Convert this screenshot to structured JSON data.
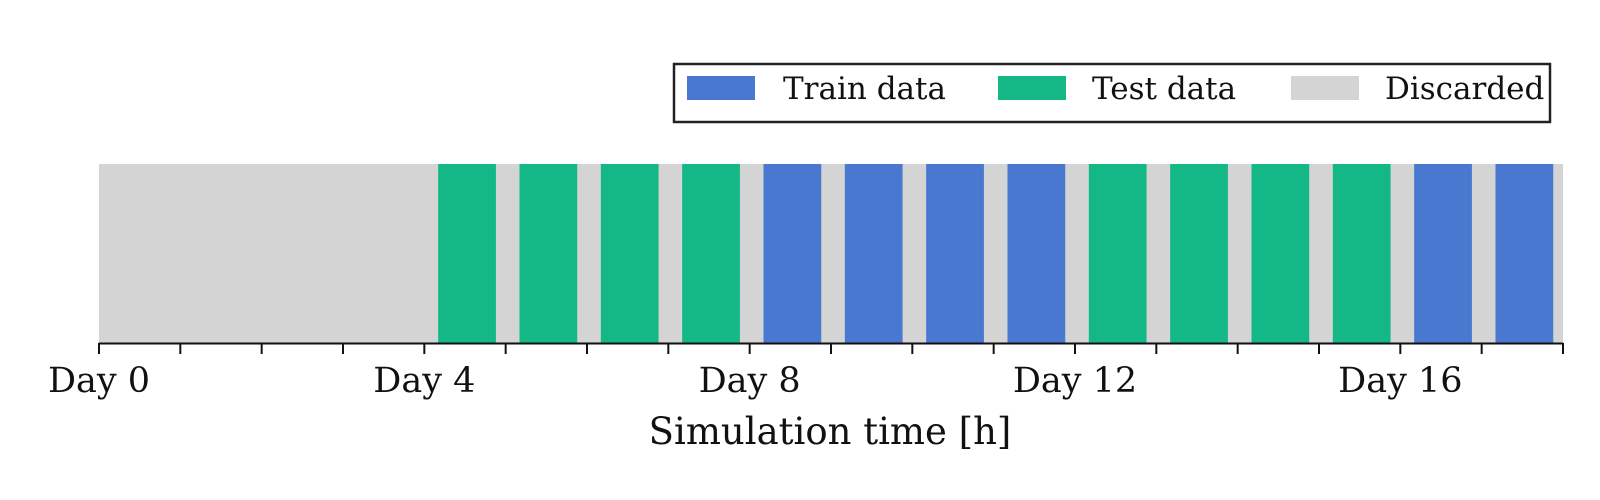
{
  "chart_data": {
    "type": "bar",
    "orientation": "horizontal-timeline",
    "xlabel": "Simulation time [h]",
    "xlim": [
      0,
      18
    ],
    "x_ticks": [
      0,
      1,
      2,
      3,
      4,
      5,
      6,
      7,
      8,
      9,
      10,
      11,
      12,
      13,
      14,
      15,
      16,
      17,
      18
    ],
    "x_tick_labels": [
      {
        "value": 0,
        "label": "Day 0"
      },
      {
        "value": 4,
        "label": "Day 4"
      },
      {
        "value": 8,
        "label": "Day 8"
      },
      {
        "value": 12,
        "label": "Day 12"
      },
      {
        "value": 16,
        "label": "Day 16"
      }
    ],
    "grid": false,
    "legend_position": "top-right",
    "legend": [
      {
        "key": "train",
        "label": "Train data",
        "color": "#4878d0"
      },
      {
        "key": "test",
        "label": "Test data",
        "color": "#13b886"
      },
      {
        "key": "discarded",
        "label": "Discarded",
        "color": "#d4d4d4"
      }
    ],
    "background_segment": {
      "category": "discarded",
      "start": 0,
      "end": 18
    },
    "segments": [
      {
        "category": "test",
        "start": 4.17,
        "end": 4.88
      },
      {
        "category": "test",
        "start": 5.17,
        "end": 5.88
      },
      {
        "category": "test",
        "start": 6.17,
        "end": 6.88
      },
      {
        "category": "test",
        "start": 7.17,
        "end": 7.88
      },
      {
        "category": "train",
        "start": 8.17,
        "end": 8.88
      },
      {
        "category": "train",
        "start": 9.17,
        "end": 9.88
      },
      {
        "category": "train",
        "start": 10.17,
        "end": 10.88
      },
      {
        "category": "train",
        "start": 11.17,
        "end": 11.88
      },
      {
        "category": "test",
        "start": 12.17,
        "end": 12.88
      },
      {
        "category": "test",
        "start": 13.17,
        "end": 13.88
      },
      {
        "category": "test",
        "start": 14.17,
        "end": 14.88
      },
      {
        "category": "test",
        "start": 15.17,
        "end": 15.88
      },
      {
        "category": "train",
        "start": 16.17,
        "end": 16.88
      },
      {
        "category": "train",
        "start": 17.17,
        "end": 17.88
      }
    ]
  }
}
